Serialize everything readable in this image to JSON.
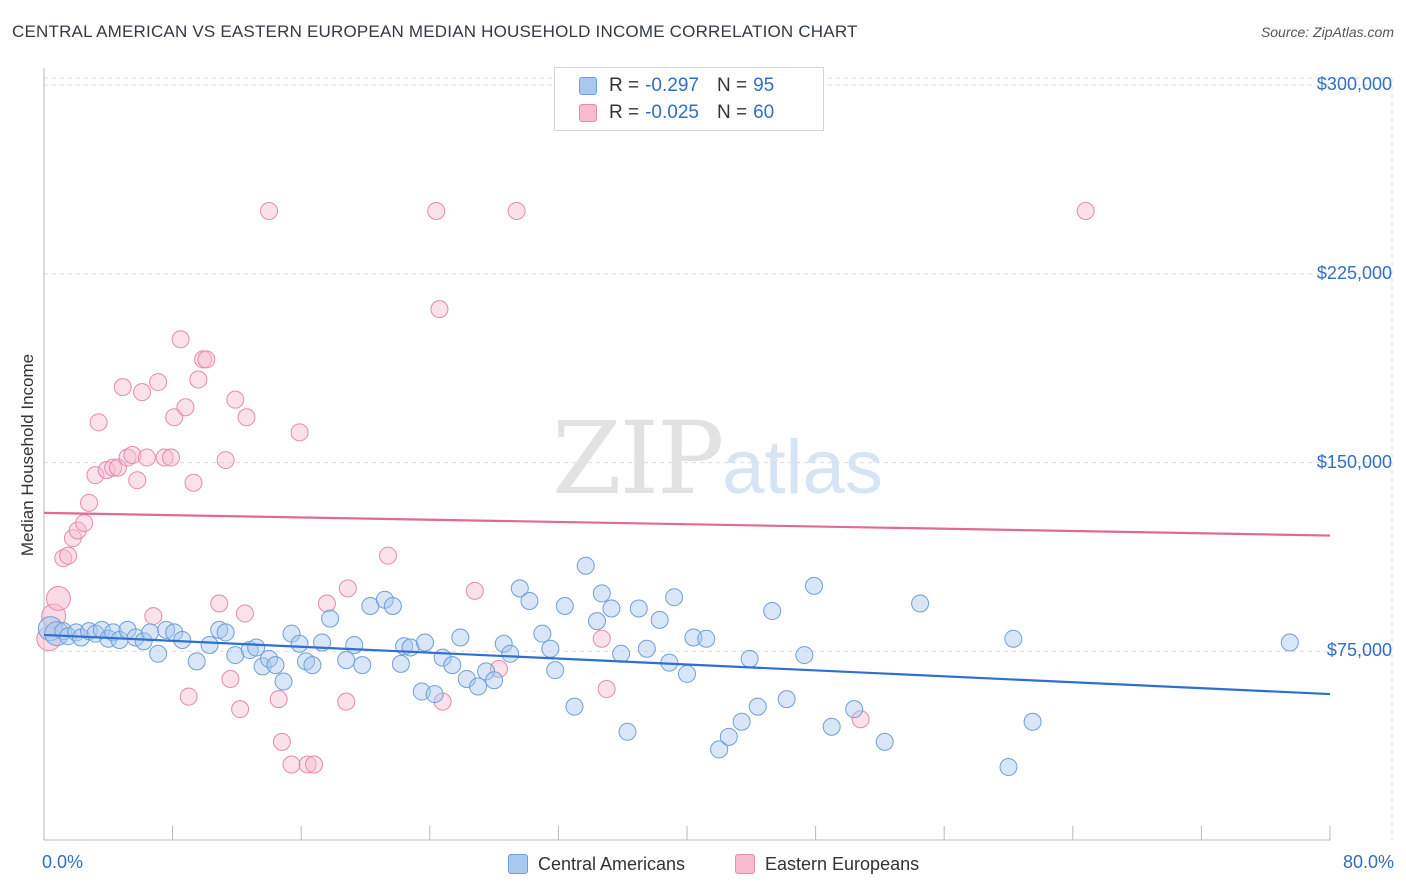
{
  "title": "CENTRAL AMERICAN VS EASTERN EUROPEAN MEDIAN HOUSEHOLD INCOME CORRELATION CHART",
  "source": "Source: ZipAtlas.com",
  "watermark": {
    "zip": "ZIP",
    "atlas": "atlas"
  },
  "legend": {
    "rows": [
      {
        "r_label": "R =",
        "r_value": "-0.297",
        "n_label": "N =",
        "n_value": "95",
        "color": "#a9c8ef",
        "border": "#6f9fd8"
      },
      {
        "r_label": "R =",
        "r_value": "-0.025",
        "n_label": "N =",
        "n_value": "60",
        "color": "#f7bcd0",
        "border": "#e58aab"
      }
    ]
  },
  "bottom_legend": [
    "Central Americans",
    "Eastern Europeans"
  ],
  "chart_data": {
    "type": "scatter",
    "title": "CENTRAL AMERICAN VS EASTERN EUROPEAN MEDIAN HOUSEHOLD INCOME CORRELATION CHART",
    "xlabel": "",
    "ylabel": "Median Household Income",
    "x_tick_labels": [
      "0.0%",
      "80.0%"
    ],
    "y_tick_labels": [
      "$75,000",
      "$150,000",
      "$225,000",
      "$300,000"
    ],
    "y_ticks": [
      75000,
      150000,
      225000,
      300000
    ],
    "xlim": [
      0,
      80
    ],
    "ylim": [
      0,
      310000
    ],
    "grid": true,
    "series": [
      {
        "name": "Central Americans",
        "color": "#6f9fd8",
        "fill": "#a9c8ef",
        "trend": {
          "x": [
            0,
            80
          ],
          "y": [
            81500,
            58000
          ],
          "color": "#2f6fcf"
        },
        "points": [
          [
            0.4,
            84000
          ],
          [
            0.8,
            82000
          ],
          [
            1.2,
            83000
          ],
          [
            1.5,
            81000
          ],
          [
            2.0,
            82500
          ],
          [
            2.3,
            80500
          ],
          [
            2.8,
            83000
          ],
          [
            3.2,
            82000
          ],
          [
            3.6,
            83500
          ],
          [
            4.0,
            80000
          ],
          [
            4.3,
            82500
          ],
          [
            4.7,
            79500
          ],
          [
            5.2,
            83500
          ],
          [
            5.7,
            80500
          ],
          [
            6.2,
            79000
          ],
          [
            6.6,
            82500
          ],
          [
            7.1,
            74000
          ],
          [
            7.6,
            83500
          ],
          [
            8.1,
            82500
          ],
          [
            8.6,
            79500
          ],
          [
            9.5,
            71000
          ],
          [
            10.3,
            77500
          ],
          [
            10.9,
            83500
          ],
          [
            11.3,
            82500
          ],
          [
            11.9,
            73500
          ],
          [
            12.8,
            75500
          ],
          [
            13.2,
            76500
          ],
          [
            13.6,
            69000
          ],
          [
            14.0,
            72000
          ],
          [
            14.4,
            69500
          ],
          [
            14.9,
            63000
          ],
          [
            15.4,
            82000
          ],
          [
            15.9,
            78000
          ],
          [
            16.3,
            71000
          ],
          [
            16.7,
            69500
          ],
          [
            17.3,
            78500
          ],
          [
            17.8,
            88000
          ],
          [
            18.8,
            71500
          ],
          [
            19.3,
            77500
          ],
          [
            19.8,
            69500
          ],
          [
            20.3,
            93000
          ],
          [
            21.2,
            95500
          ],
          [
            21.7,
            93000
          ],
          [
            22.4,
            77000
          ],
          [
            22.8,
            76500
          ],
          [
            22.2,
            70000
          ],
          [
            23.5,
            59000
          ],
          [
            23.7,
            78500
          ],
          [
            24.3,
            58000
          ],
          [
            24.8,
            72500
          ],
          [
            25.4,
            69500
          ],
          [
            25.9,
            80500
          ],
          [
            26.3,
            64000
          ],
          [
            27.0,
            61000
          ],
          [
            27.5,
            67000
          ],
          [
            28.0,
            63500
          ],
          [
            28.6,
            78000
          ],
          [
            29.0,
            74000
          ],
          [
            29.6,
            100000
          ],
          [
            30.2,
            95000
          ],
          [
            31.0,
            82000
          ],
          [
            31.5,
            76000
          ],
          [
            31.8,
            67500
          ],
          [
            32.4,
            93000
          ],
          [
            33.0,
            53000
          ],
          [
            33.7,
            109000
          ],
          [
            34.4,
            87000
          ],
          [
            34.7,
            98000
          ],
          [
            35.3,
            92000
          ],
          [
            35.9,
            74000
          ],
          [
            36.3,
            43000
          ],
          [
            37.0,
            92000
          ],
          [
            37.5,
            76000
          ],
          [
            38.9,
            70500
          ],
          [
            38.3,
            87500
          ],
          [
            39.2,
            96500
          ],
          [
            40.0,
            66000
          ],
          [
            40.4,
            80500
          ],
          [
            41.2,
            80000
          ],
          [
            42.0,
            36000
          ],
          [
            42.6,
            41000
          ],
          [
            43.4,
            47000
          ],
          [
            43.9,
            72000
          ],
          [
            44.4,
            53000
          ],
          [
            45.3,
            91000
          ],
          [
            46.2,
            56000
          ],
          [
            47.3,
            73500
          ],
          [
            47.9,
            101000
          ],
          [
            49.0,
            45000
          ],
          [
            50.4,
            52000
          ],
          [
            52.3,
            39000
          ],
          [
            54.5,
            94000
          ],
          [
            60.0,
            29000
          ],
          [
            60.3,
            80000
          ],
          [
            61.5,
            47000
          ],
          [
            77.5,
            78500
          ]
        ]
      },
      {
        "name": "Eastern Europeans",
        "color": "#e58aab",
        "fill": "#f7bcd0",
        "trend": {
          "x": [
            0,
            80
          ],
          "y": [
            130000,
            121000
          ],
          "color": "#e06a92"
        },
        "points": [
          [
            0.3,
            80000
          ],
          [
            0.6,
            89000
          ],
          [
            0.9,
            96000
          ],
          [
            1.2,
            112000
          ],
          [
            1.5,
            113000
          ],
          [
            1.8,
            120000
          ],
          [
            2.1,
            123000
          ],
          [
            2.5,
            126000
          ],
          [
            2.8,
            134000
          ],
          [
            3.2,
            145000
          ],
          [
            3.4,
            166000
          ],
          [
            3.9,
            147000
          ],
          [
            4.3,
            148000
          ],
          [
            4.6,
            148000
          ],
          [
            4.9,
            180000
          ],
          [
            5.2,
            152000
          ],
          [
            5.5,
            153000
          ],
          [
            5.8,
            143000
          ],
          [
            6.1,
            178000
          ],
          [
            6.4,
            152000
          ],
          [
            6.8,
            89000
          ],
          [
            7.1,
            182000
          ],
          [
            7.5,
            152000
          ],
          [
            7.9,
            152000
          ],
          [
            8.1,
            168000
          ],
          [
            8.5,
            199000
          ],
          [
            8.8,
            172000
          ],
          [
            9.0,
            57000
          ],
          [
            9.3,
            142000
          ],
          [
            9.6,
            183000
          ],
          [
            9.9,
            191000
          ],
          [
            10.1,
            191000
          ],
          [
            10.9,
            94000
          ],
          [
            11.3,
            151000
          ],
          [
            11.6,
            64000
          ],
          [
            11.9,
            175000
          ],
          [
            12.2,
            52000
          ],
          [
            12.6,
            168000
          ],
          [
            12.5,
            90000
          ],
          [
            14.0,
            250000
          ],
          [
            14.6,
            56000
          ],
          [
            14.8,
            39000
          ],
          [
            15.4,
            30000
          ],
          [
            15.9,
            162000
          ],
          [
            16.4,
            30000
          ],
          [
            16.8,
            30000
          ],
          [
            17.6,
            94000
          ],
          [
            18.8,
            55000
          ],
          [
            18.9,
            100000
          ],
          [
            21.4,
            113000
          ],
          [
            24.4,
            250000
          ],
          [
            24.6,
            211000
          ],
          [
            24.8,
            55000
          ],
          [
            26.8,
            99000
          ],
          [
            28.3,
            68000
          ],
          [
            29.4,
            250000
          ],
          [
            34.7,
            80000
          ],
          [
            35.0,
            60000
          ],
          [
            50.8,
            48000
          ],
          [
            64.8,
            250000
          ]
        ]
      }
    ]
  }
}
